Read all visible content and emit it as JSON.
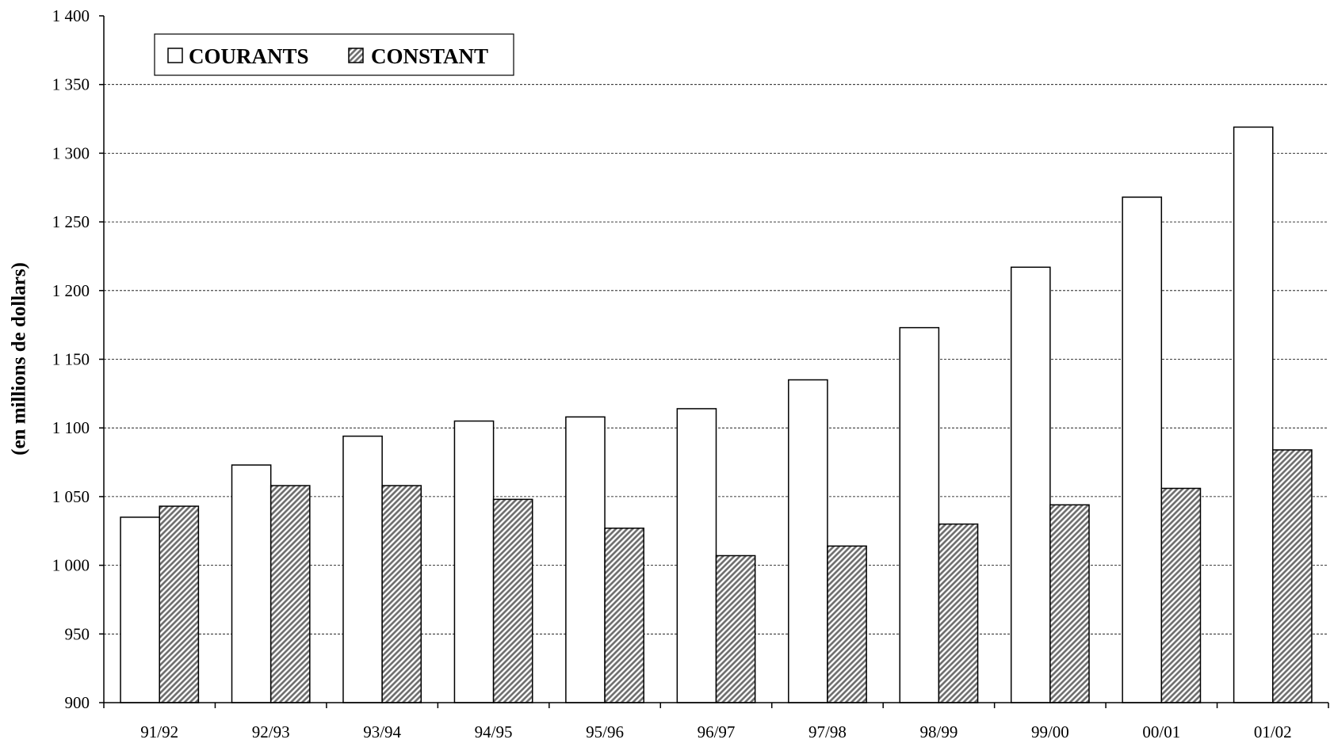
{
  "chart_data": {
    "type": "bar",
    "categories": [
      "91/92",
      "92/93",
      "93/94",
      "94/95",
      "95/96",
      "96/97",
      "97/98",
      "98/99",
      "99/00",
      "00/01",
      "01/02"
    ],
    "series": [
      {
        "name": "COURANTS",
        "values": [
          1035,
          1073,
          1094,
          1105,
          1108,
          1114,
          1135,
          1173,
          1217,
          1268,
          1319
        ],
        "fill": "#ffffff",
        "pattern": "none"
      },
      {
        "name": "CONSTANT",
        "values": [
          1043,
          1058,
          1058,
          1048,
          1027,
          1007,
          1014,
          1030,
          1044,
          1056,
          1084
        ],
        "fill": "#ffffff",
        "pattern": "diagonal-hatch",
        "hatch_color": "#6b6b6b"
      }
    ],
    "ylabel": "(en millions de dollars)",
    "ylim": [
      900,
      1400
    ],
    "yticks": [
      900,
      950,
      1000,
      1050,
      1100,
      1150,
      1200,
      1250,
      1300,
      1350,
      1400
    ],
    "ytick_labels": [
      "900",
      "950",
      "1 000",
      "1 050",
      "1 100",
      "1 150",
      "1 200",
      "1 250",
      "1 300",
      "1 350",
      "1 400"
    ],
    "grid": true,
    "legend_position": "top-left"
  }
}
